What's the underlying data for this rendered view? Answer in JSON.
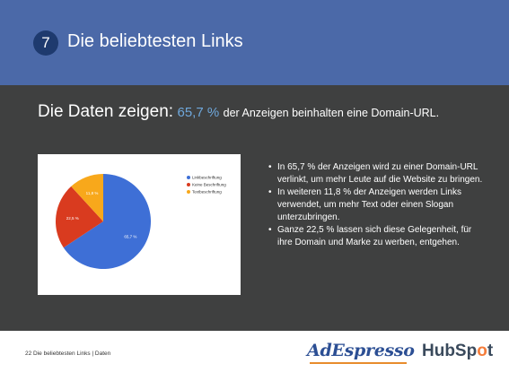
{
  "header": {
    "number": "7",
    "title": "Die beliebtesten Links"
  },
  "lead": {
    "prefix": "Die Daten zeigen:",
    "highlight": "65,7 %",
    "suffix": "der Anzeigen beinhalten eine Domain-URL."
  },
  "chart_data": {
    "type": "pie",
    "categories": [
      "Linkbeschriftung",
      "Keine Beschriftung",
      "Textbeschriftung"
    ],
    "values": [
      65.7,
      22.5,
      11.8
    ],
    "data_labels": [
      "65,7 %",
      "22,5 %",
      "11,8 %"
    ],
    "colors": [
      "#3e6fd6",
      "#d93b1f",
      "#f8a81b"
    ],
    "legend_position": "top-right",
    "title": ""
  },
  "bullets": [
    "In 65,7 % der Anzeigen wird zu einer Domain-URL verlinkt, um mehr Leute auf die Website zu bringen.",
    "In weiteren 11,8 % der Anzeigen werden Links verwendet, um mehr Text oder einen Slogan unterzubringen.",
    "Ganze 22,5 % lassen sich diese Gelegenheit, für ihre Domain und Marke zu werben, entgehen."
  ],
  "footer": {
    "text": "22   Die beliebtesten Links  |  Daten",
    "adespresso": "AdEspresso",
    "hubspot_a": "HubSp",
    "hubspot_b": "o",
    "hubspot_c": "t"
  }
}
